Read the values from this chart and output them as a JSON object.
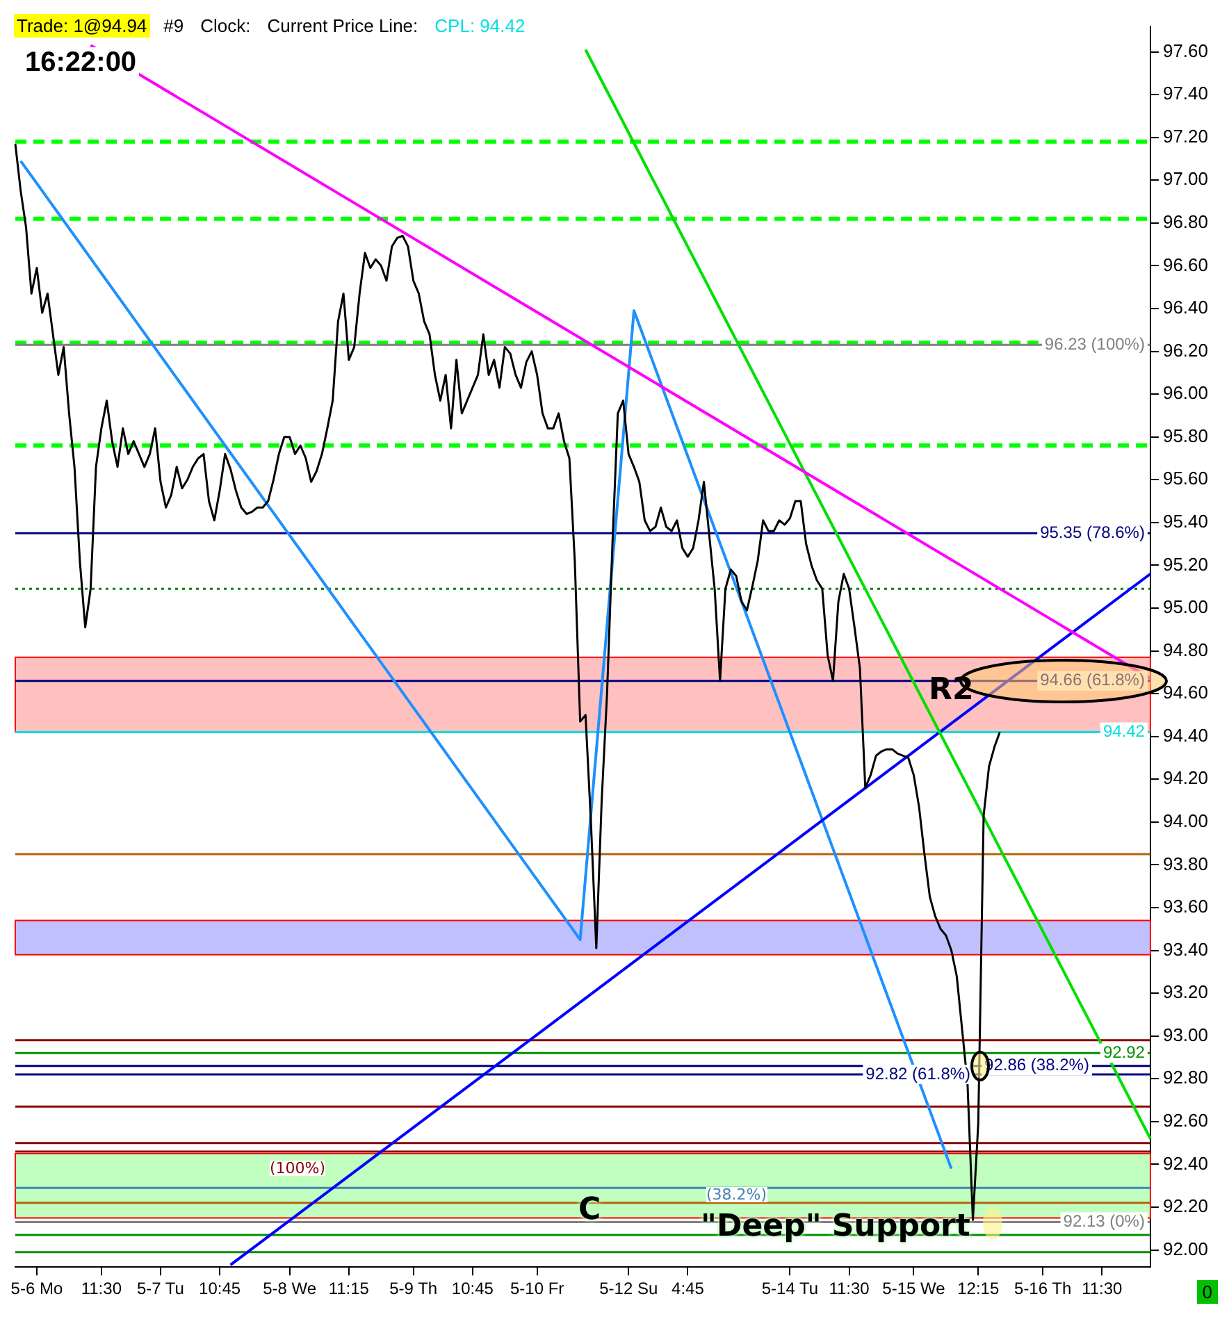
{
  "chart_data": {
    "type": "line",
    "ylim": [
      91.92,
      97.72
    ],
    "categories": [
      null,
      null,
      null,
      null,
      "5-6 Mo",
      null,
      null,
      null,
      null,
      null,
      null,
      null,
      null,
      null,
      null,
      null,
      "11:30",
      null,
      null,
      null,
      null,
      null,
      null,
      null,
      null,
      null,
      null,
      "5-7 Tu",
      null,
      null,
      null,
      null,
      null,
      null,
      null,
      null,
      null,
      null,
      "10:45",
      null,
      null,
      null,
      null,
      null,
      null,
      null,
      null,
      null,
      null,
      null,
      null,
      "5-8 We",
      null,
      null,
      null,
      null,
      null,
      null,
      null,
      null,
      null,
      null,
      "11:15",
      null,
      null,
      null,
      null,
      null,
      null,
      null,
      null,
      null,
      null,
      null,
      "5-9 Th",
      null,
      null,
      null,
      null,
      null,
      null,
      null,
      null,
      null,
      null,
      "10:45",
      null,
      null,
      null,
      null,
      null,
      null,
      null,
      null,
      null,
      null,
      null,
      "5-10 Fr",
      null,
      null,
      null,
      null,
      null,
      null,
      null,
      null,
      null,
      null,
      null,
      null,
      null,
      null,
      null,
      null,
      "5-12 Su",
      null,
      null,
      null,
      null,
      null,
      null,
      null,
      null,
      null,
      null,
      "4:45",
      null,
      null,
      null,
      null,
      null,
      null,
      null,
      null,
      null,
      null,
      null,
      null,
      null,
      null,
      null,
      null,
      null,
      null,
      "5-14 Tu",
      null,
      null,
      null,
      null,
      null,
      null,
      null,
      null,
      null,
      null,
      "11:30",
      null,
      null,
      null,
      null,
      null,
      null,
      null,
      null,
      null,
      null,
      null,
      "5-15 We",
      null,
      null,
      null,
      null,
      null,
      null,
      null,
      null,
      null,
      null,
      null,
      "12:15",
      null,
      null,
      null,
      null,
      null,
      null,
      null,
      null,
      null,
      null,
      null,
      "5-16 Th",
      null,
      null,
      null,
      null,
      null,
      null,
      null,
      null,
      null,
      null,
      "11:30",
      null,
      null,
      null,
      null,
      null,
      null,
      null,
      null,
      null
    ],
    "yticks": [
      {
        "value": 92.0,
        "label": "92.00"
      },
      {
        "value": 92.2,
        "label": "92.20"
      },
      {
        "value": 92.4,
        "label": "92.40"
      },
      {
        "value": 92.6,
        "label": "92.60"
      },
      {
        "value": 92.8,
        "label": "92.80"
      },
      {
        "value": 93.0,
        "label": "93.00"
      },
      {
        "value": 93.2,
        "label": "93.20"
      },
      {
        "value": 93.4,
        "label": "93.40"
      },
      {
        "value": 93.6,
        "label": "93.60"
      },
      {
        "value": 93.8,
        "label": "93.80"
      },
      {
        "value": 94.0,
        "label": "94.00"
      },
      {
        "value": 94.2,
        "label": "94.20"
      },
      {
        "value": 94.4,
        "label": "94.40"
      },
      {
        "value": 94.6,
        "label": "94.60"
      },
      {
        "value": 94.8,
        "label": "94.80"
      },
      {
        "value": 95.0,
        "label": "95.00"
      },
      {
        "value": 95.2,
        "label": "95.20"
      },
      {
        "value": 95.4,
        "label": "95.40"
      },
      {
        "value": 95.6,
        "label": "95.60"
      },
      {
        "value": 95.8,
        "label": "95.80"
      },
      {
        "value": 96.0,
        "label": "96.00"
      },
      {
        "value": 96.2,
        "label": "96.20"
      },
      {
        "value": 96.4,
        "label": "96.40"
      },
      {
        "value": 96.6,
        "label": "96.60"
      },
      {
        "value": 96.8,
        "label": "96.80"
      },
      {
        "value": 97.0,
        "label": "97.00"
      },
      {
        "value": 97.2,
        "label": "97.20"
      },
      {
        "value": 97.4,
        "label": "97.40"
      },
      {
        "value": 97.6,
        "label": "97.60"
      }
    ],
    "grid": false,
    "legend": false,
    "marker": "none",
    "series": [
      {
        "color": "#000000",
        "line_style": "solid",
        "values": [
          97.17,
          96.95,
          96.78,
          96.47,
          96.59,
          96.38,
          96.47,
          96.28,
          96.09,
          96.22,
          95.91,
          95.66,
          95.22,
          94.91,
          95.09,
          95.66,
          95.84,
          95.97,
          95.78,
          95.66,
          95.84,
          95.72,
          95.78,
          95.72,
          95.66,
          95.72,
          95.84,
          95.59,
          95.47,
          95.53,
          95.66,
          95.56,
          95.6,
          95.66,
          95.7,
          95.72,
          95.5,
          95.41,
          95.55,
          95.72,
          95.65,
          95.55,
          95.47,
          95.44,
          95.45,
          95.47,
          95.47,
          95.5,
          95.6,
          95.72,
          95.8,
          95.8,
          95.72,
          95.76,
          95.7,
          95.59,
          95.64,
          95.72,
          95.84,
          95.97,
          96.34,
          96.47,
          96.16,
          96.22,
          96.47,
          96.66,
          96.59,
          96.63,
          96.6,
          96.53,
          96.69,
          96.73,
          96.74,
          96.69,
          96.53,
          96.47,
          96.34,
          96.28,
          96.09,
          95.97,
          96.09,
          95.84,
          96.16,
          95.91,
          95.97,
          96.03,
          96.09,
          96.28,
          96.09,
          96.16,
          96.03,
          96.22,
          96.19,
          96.09,
          96.03,
          96.15,
          96.2,
          96.09,
          95.91,
          95.84,
          95.84,
          95.91,
          95.78,
          95.7,
          95.22,
          94.47,
          94.5,
          94.0,
          93.41,
          94.1,
          94.6,
          95.3,
          95.91,
          95.97,
          95.72,
          95.66,
          95.59,
          95.41,
          95.36,
          95.38,
          95.47,
          95.38,
          95.36,
          95.41,
          95.28,
          95.24,
          95.28,
          95.41,
          95.59,
          95.34,
          95.09,
          94.66,
          95.09,
          95.18,
          95.15,
          95.03,
          94.99,
          95.1,
          95.22,
          95.41,
          95.36,
          95.36,
          95.41,
          95.39,
          95.42,
          95.5,
          95.5,
          95.3,
          95.2,
          95.13,
          95.09,
          94.78,
          94.66,
          95.03,
          95.16,
          95.09,
          94.91,
          94.72,
          94.16,
          94.22,
          94.31,
          94.33,
          94.34,
          94.34,
          94.32,
          94.31,
          94.3,
          94.22,
          94.07,
          93.85,
          93.65,
          93.56,
          93.5,
          93.47,
          93.4,
          93.28,
          93.03,
          92.78,
          92.14,
          92.59,
          94.03,
          94.26,
          94.35,
          94.42,
          null,
          null,
          null,
          null,
          null,
          null,
          null,
          null,
          null,
          null,
          null,
          null,
          null,
          null,
          null,
          null,
          null,
          null,
          null,
          null,
          null,
          null,
          null,
          null,
          null,
          null,
          null,
          null
        ]
      },
      {
        "type": "line",
        "color": "#ff00ff",
        "line_style": "solid",
        "values": [
          null,
          null,
          null,
          null,
          null,
          null,
          null,
          null,
          null,
          null,
          null,
          null,
          null,
          null,
          97.63,
          null,
          null,
          null,
          null,
          null,
          null,
          null,
          null,
          null,
          null,
          null,
          null,
          null,
          null,
          null,
          null,
          null,
          null,
          null,
          null,
          null,
          null,
          null,
          null,
          null,
          null,
          null,
          null,
          null,
          null,
          null,
          null,
          null,
          null,
          null,
          null,
          null,
          null,
          null,
          null,
          null,
          null,
          null,
          null,
          null,
          null,
          null,
          null,
          null,
          null,
          null,
          null,
          null,
          null,
          null,
          null,
          null,
          null,
          null,
          null,
          null,
          null,
          null,
          null,
          null,
          null,
          null,
          null,
          null,
          null,
          null,
          null,
          null,
          null,
          null,
          null,
          null,
          null,
          null,
          null,
          null,
          null,
          null,
          null,
          null,
          null,
          null,
          null,
          null,
          null,
          null,
          null,
          null,
          null,
          null,
          null,
          null,
          null,
          null,
          null,
          null,
          null,
          null,
          null,
          null,
          null,
          null,
          null,
          null,
          null,
          null,
          null,
          null,
          null,
          null,
          null,
          null,
          null,
          null,
          null,
          null,
          null,
          null,
          null,
          null,
          null,
          null,
          null,
          null,
          null,
          null,
          null,
          null,
          null,
          null,
          null,
          null,
          null,
          null,
          null,
          null,
          null,
          null,
          null,
          null,
          null,
          null,
          null,
          null,
          null,
          null,
          null,
          null,
          null,
          null,
          null,
          null,
          null,
          null,
          null,
          null,
          null,
          null,
          null,
          null,
          null,
          null,
          null,
          null,
          null,
          null,
          null,
          null,
          null,
          null,
          null,
          null,
          null,
          null,
          null,
          null,
          null,
          null,
          null,
          null,
          null,
          null,
          null,
          null,
          null,
          null,
          null,
          null,
          null,
          null,
          null,
          94.67
        ]
      },
      {
        "type": "line",
        "color": "#00e000",
        "line_style": "solid",
        "values": [
          null,
          null,
          null,
          null,
          null,
          null,
          null,
          null,
          null,
          null,
          null,
          null,
          null,
          null,
          null,
          null,
          null,
          null,
          null,
          null,
          null,
          null,
          null,
          null,
          null,
          null,
          null,
          null,
          null,
          null,
          null,
          null,
          null,
          null,
          null,
          null,
          null,
          null,
          null,
          null,
          null,
          null,
          null,
          null,
          null,
          null,
          null,
          null,
          null,
          null,
          null,
          null,
          null,
          null,
          null,
          null,
          null,
          null,
          null,
          null,
          null,
          null,
          null,
          null,
          null,
          null,
          null,
          null,
          null,
          null,
          null,
          null,
          null,
          null,
          null,
          null,
          null,
          null,
          null,
          null,
          null,
          null,
          null,
          null,
          null,
          null,
          null,
          null,
          null,
          null,
          null,
          null,
          null,
          null,
          null,
          null,
          null,
          null,
          null,
          null,
          null,
          null,
          null,
          null,
          null,
          null,
          97.61,
          null,
          null,
          null,
          null,
          null,
          null,
          null,
          null,
          null,
          null,
          null,
          null,
          null,
          null,
          null,
          null,
          null,
          null,
          null,
          null,
          null,
          null,
          null,
          null,
          null,
          null,
          null,
          null,
          null,
          null,
          null,
          null,
          null,
          null,
          null,
          null,
          null,
          null,
          null,
          null,
          null,
          null,
          null,
          null,
          null,
          null,
          null,
          null,
          null,
          null,
          null,
          null,
          null,
          null,
          null,
          null,
          null,
          null,
          null,
          null,
          null,
          null,
          null,
          null,
          null,
          null,
          null,
          null,
          null,
          null,
          null,
          null,
          null,
          null,
          null,
          null,
          null,
          null,
          null,
          null,
          null,
          null,
          null,
          null,
          null,
          null,
          null,
          null,
          null,
          null,
          null,
          null,
          null,
          null,
          null,
          null,
          null,
          null,
          null,
          null,
          null,
          null,
          null,
          null,
          92.52
        ]
      },
      {
        "type": "line",
        "color": "#0000ff",
        "line_style": "solid",
        "values": [
          null,
          null,
          null,
          null,
          null,
          null,
          null,
          null,
          null,
          null,
          null,
          null,
          null,
          null,
          null,
          null,
          null,
          null,
          null,
          null,
          null,
          null,
          null,
          null,
          null,
          null,
          null,
          null,
          null,
          null,
          null,
          null,
          null,
          null,
          null,
          null,
          null,
          null,
          null,
          null,
          91.93,
          null,
          null,
          null,
          null,
          null,
          null,
          null,
          null,
          null,
          null,
          null,
          null,
          null,
          null,
          null,
          null,
          null,
          null,
          null,
          null,
          null,
          null,
          null,
          null,
          null,
          null,
          null,
          null,
          null,
          null,
          null,
          null,
          null,
          null,
          null,
          null,
          null,
          null,
          null,
          null,
          null,
          null,
          null,
          null,
          null,
          null,
          null,
          null,
          null,
          null,
          null,
          null,
          null,
          null,
          null,
          null,
          null,
          null,
          null,
          null,
          null,
          null,
          null,
          null,
          null,
          null,
          null,
          null,
          null,
          null,
          null,
          null,
          null,
          null,
          null,
          null,
          null,
          null,
          null,
          null,
          null,
          null,
          null,
          null,
          null,
          null,
          null,
          null,
          null,
          null,
          null,
          null,
          null,
          null,
          null,
          null,
          null,
          null,
          null,
          null,
          null,
          null,
          null,
          null,
          null,
          null,
          null,
          null,
          null,
          null,
          null,
          null,
          null,
          null,
          null,
          null,
          null,
          null,
          null,
          null,
          null,
          null,
          null,
          null,
          null,
          null,
          null,
          null,
          null,
          null,
          null,
          null,
          null,
          null,
          null,
          null,
          null,
          null,
          null,
          null,
          null,
          null,
          null,
          null,
          null,
          null,
          null,
          null,
          null,
          null,
          null,
          null,
          null,
          null,
          null,
          null,
          null,
          null,
          null,
          null,
          null,
          null,
          null,
          null,
          null,
          null,
          null,
          null,
          null,
          null,
          95.16
        ]
      },
      {
        "type": "line",
        "color": "#1e90ff",
        "line_style": "solid",
        "values": [
          null,
          97.09,
          null,
          null,
          null,
          null,
          null,
          null,
          null,
          null,
          null,
          null,
          null,
          null,
          null,
          null,
          null,
          null,
          null,
          null,
          null,
          null,
          null,
          null,
          null,
          null,
          null,
          null,
          null,
          null,
          null,
          null,
          null,
          null,
          null,
          null,
          null,
          null,
          null,
          null,
          null,
          null,
          null,
          null,
          null,
          null,
          null,
          null,
          null,
          null,
          null,
          null,
          null,
          null,
          null,
          null,
          null,
          null,
          null,
          null,
          null,
          null,
          null,
          null,
          null,
          null,
          null,
          null,
          null,
          null,
          null,
          null,
          null,
          null,
          null,
          null,
          null,
          null,
          null,
          null,
          null,
          null,
          null,
          null,
          null,
          null,
          null,
          null,
          null,
          null,
          null,
          null,
          null,
          null,
          null,
          null,
          null,
          null,
          null,
          null,
          null,
          null,
          null,
          null,
          null,
          93.45,
          null,
          null,
          null,
          null,
          null,
          null,
          null,
          null,
          null,
          96.39,
          null,
          null,
          null,
          null,
          null,
          null,
          null,
          null,
          null,
          null,
          null,
          null,
          null,
          null,
          null,
          null,
          null,
          null,
          null,
          null,
          null,
          null,
          null,
          null,
          null,
          null,
          null,
          null,
          null,
          null,
          null,
          null,
          null,
          null,
          null,
          null,
          null,
          null,
          null,
          null,
          null,
          null,
          null,
          null,
          null,
          null,
          null,
          null,
          null,
          null,
          null,
          null,
          null,
          null,
          null,
          null,
          null,
          null,
          92.38,
          null,
          null,
          null,
          null,
          null,
          null,
          null,
          null,
          null,
          null,
          null,
          null,
          null,
          null,
          null,
          null,
          null,
          null,
          null,
          null,
          null,
          null,
          null,
          null,
          null,
          null,
          null,
          null,
          null,
          null,
          null,
          null,
          null,
          null,
          null,
          null,
          null
        ]
      }
    ],
    "bands": [
      {
        "axis": "y",
        "from": 94.42,
        "to": 94.77,
        "color": "#ffc0c0"
      },
      {
        "axis": "y",
        "from": 93.38,
        "to": 93.54,
        "color": "#c0c0ff"
      },
      {
        "axis": "y",
        "from": 92.15,
        "to": 92.45,
        "color": "#c0ffc0"
      }
    ],
    "ref_lines": [
      {
        "axis": "y",
        "value": 97.18,
        "color": "#00ff00",
        "line_style": "dashed"
      },
      {
        "axis": "y",
        "value": 96.82,
        "color": "#00ff00",
        "line_style": "dashed"
      },
      {
        "axis": "y",
        "value": 96.24,
        "color": "#00ff00",
        "line_style": "dashed"
      },
      {
        "axis": "y",
        "value": 95.76,
        "color": "#00ff00",
        "line_style": "dashed"
      },
      {
        "axis": "y",
        "value": 96.23,
        "label": "96.23 (100%)",
        "color": "#808080",
        "line_style": "solid"
      },
      {
        "axis": "y",
        "value": 95.35,
        "label": "95.35 (78.6%)",
        "color": "#000080",
        "line_style": "solid"
      },
      {
        "axis": "y",
        "value": 95.09,
        "color": "#008000",
        "line_style": "dotted"
      },
      {
        "axis": "y",
        "value": 94.66,
        "label": "94.66 (61.8%)",
        "color": "#000080",
        "line_style": "solid"
      },
      {
        "axis": "y",
        "value": 94.42,
        "label": "94.42",
        "color": "#00e0e0",
        "line_style": "solid"
      },
      {
        "axis": "y",
        "value": 93.85,
        "color": "#b8600b",
        "line_style": "solid"
      },
      {
        "axis": "y",
        "value": 92.98,
        "color": "#8b0000",
        "line_style": "solid"
      },
      {
        "axis": "y",
        "value": 92.92,
        "label": "92.92",
        "color": "#009000",
        "line_style": "solid"
      },
      {
        "axis": "y",
        "value": 92.86,
        "label": "92.86 (38.2%)",
        "color": "#000080",
        "line_style": "solid"
      },
      {
        "axis": "y",
        "value": 92.82,
        "label": "92.82 (61.8%)",
        "color": "#000080",
        "line_style": "solid"
      },
      {
        "axis": "y",
        "value": 92.67,
        "color": "#8b0000",
        "line_style": "solid"
      },
      {
        "axis": "y",
        "value": 92.5,
        "color": "#8b0000",
        "line_style": "solid"
      },
      {
        "axis": "y",
        "value": 92.46,
        "color": "#8b0000",
        "line_style": "solid"
      },
      {
        "axis": "y",
        "value": 92.29,
        "color": "#4682b4",
        "line_style": "solid"
      },
      {
        "axis": "y",
        "value": 92.22,
        "color": "#b8600b",
        "line_style": "solid"
      },
      {
        "axis": "y",
        "value": 92.13,
        "label": "92.13 (0%)",
        "color": "#808080",
        "line_style": "solid"
      },
      {
        "axis": "y",
        "value": 92.07,
        "color": "#009000",
        "line_style": "solid"
      },
      {
        "axis": "y",
        "value": 91.99,
        "color": "#009000",
        "line_style": "solid"
      }
    ],
    "annotations": [
      "R2",
      "C",
      "\"Deep\" Support",
      "(100%)",
      "(38.2%)",
      "Trade: 1@94.94",
      "#9",
      "Clock:",
      "Current Price Line:",
      "CPL: 94.42",
      "16:22:00",
      "0"
    ]
  }
}
